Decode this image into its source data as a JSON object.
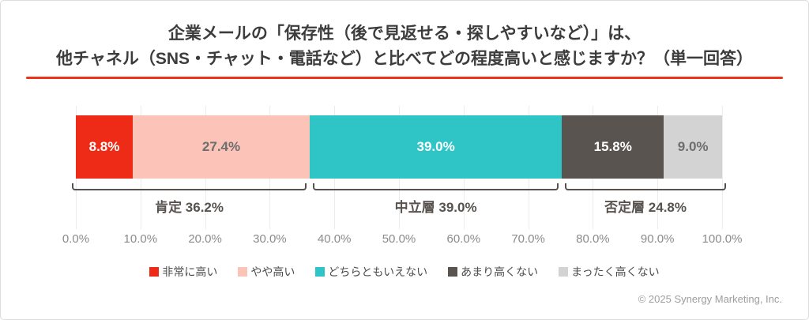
{
  "header": {
    "title_line1": "企業メールの「保存性（後で見返せる・探しやすいなど）」は、",
    "title_line2": "他チャネル（SNS・チャット・電話など）と比べてどの程度高いと感じますか？（単一回答）",
    "underline_color": "#ee3418"
  },
  "chart_data": {
    "type": "bar",
    "orientation": "horizontal_stacked",
    "title": "企業メールの「保存性（後で見返せる・探しやすいなど）」は、他チャネル（SNS・チャット・電話など）と比べてどの程度高いと感じますか？（単一回答）",
    "series": [
      {
        "name": "非常に高い",
        "value": 8.8,
        "label": "8.8%",
        "color": "#ee2b16",
        "text_color": "#ffffff"
      },
      {
        "name": "やや高い",
        "value": 27.4,
        "label": "27.4%",
        "color": "#fcc3b8",
        "text_color": "#6e6e6e"
      },
      {
        "name": "どちらともいえない",
        "value": 39.0,
        "label": "39.0%",
        "color": "#2fc4c6",
        "text_color": "#ffffff"
      },
      {
        "name": "あまり高くない",
        "value": 15.8,
        "label": "15.8%",
        "color": "#595450",
        "text_color": "#ffffff"
      },
      {
        "name": "まったく高くない",
        "value": 9.0,
        "label": "9.0%",
        "color": "#d3d3d3",
        "text_color": "#6e6e6e"
      }
    ],
    "groups": [
      {
        "label": "肯定 36.2%",
        "start": 0,
        "end": 36.2
      },
      {
        "label": "中立層 39.0%",
        "start": 36.2,
        "end": 75.2
      },
      {
        "label": "否定層 24.8%",
        "start": 75.2,
        "end": 100
      }
    ],
    "x_ticks": [
      "0.0%",
      "10.0%",
      "20.0%",
      "30.0%",
      "40.0%",
      "50.0%",
      "60.0%",
      "70.0%",
      "80.0%",
      "90.0%",
      "100.0%"
    ],
    "xlim": [
      0,
      100
    ],
    "grid": true,
    "legend_position": "bottom"
  },
  "footer": {
    "copyright": "© 2025 Synergy Marketing, Inc."
  }
}
